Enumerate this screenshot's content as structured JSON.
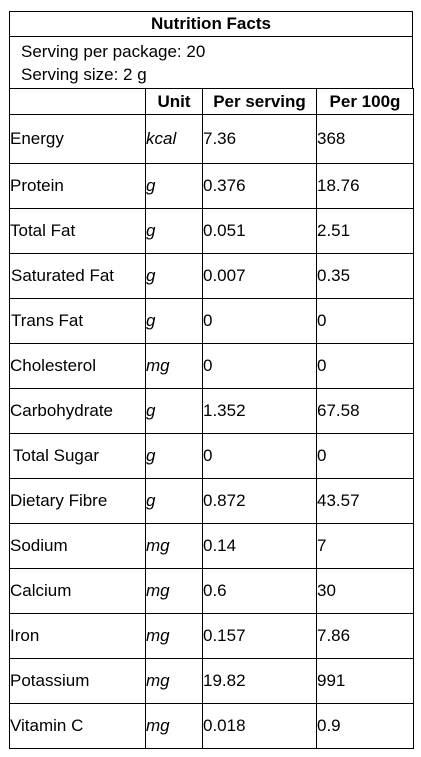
{
  "title": "Nutrition Facts",
  "serving": {
    "per_package": "Serving per package: 20",
    "size": "Serving size: 2 g"
  },
  "headers": {
    "nutrient": "",
    "unit": "Unit",
    "per_serving": "Per serving",
    "per_100g": "Per 100g"
  },
  "rows": [
    {
      "name": "Energy",
      "unit": "kcal",
      "per_serving": "7.36",
      "per_100g": "368"
    },
    {
      "name": "Protein",
      "unit": "g",
      "per_serving": "0.376",
      "per_100g": "18.76"
    },
    {
      "name": "Total Fat",
      "unit": "g",
      "per_serving": "0.051",
      "per_100g": "2.51"
    },
    {
      "name": "Saturated Fat",
      "unit": "g",
      "per_serving": "0.007",
      "per_100g": "0.35"
    },
    {
      "name": "Trans Fat",
      "unit": "g",
      "per_serving": "0",
      "per_100g": "0"
    },
    {
      "name": "Cholesterol",
      "unit": "mg",
      "per_serving": "0",
      "per_100g": "0"
    },
    {
      "name": "Carbohydrate",
      "unit": "g",
      "per_serving": "1.352",
      "per_100g": "67.58"
    },
    {
      "name": "Total Sugar",
      "unit": "g",
      "per_serving": "0",
      "per_100g": "0"
    },
    {
      "name": "Dietary Fibre",
      "unit": "g",
      "per_serving": "0.872",
      "per_100g": "43.57"
    },
    {
      "name": "Sodium",
      "unit": "mg",
      "per_serving": "0.14",
      "per_100g": "7"
    },
    {
      "name": "Calcium",
      "unit": "mg",
      "per_serving": "0.6",
      "per_100g": "30"
    },
    {
      "name": "Iron",
      "unit": "mg",
      "per_serving": "0.157",
      "per_100g": "7.86"
    },
    {
      "name": "Potassium",
      "unit": "mg",
      "per_serving": "19.82",
      "per_100g": "991"
    },
    {
      "name": "Vitamin C",
      "unit": "mg",
      "per_serving": "0.018",
      "per_100g": "0.9"
    }
  ]
}
